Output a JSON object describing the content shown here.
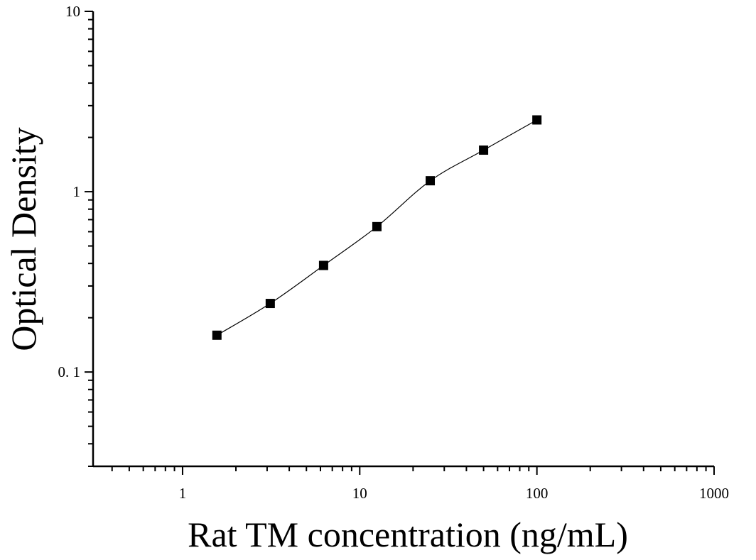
{
  "chart_data": {
    "type": "scatter",
    "xlabel": "Rat TM concentration (ng/mL)",
    "ylabel": "Optical Density",
    "x_scale": "log",
    "y_scale": "log",
    "xlim": [
      0.3125,
      1000
    ],
    "ylim": [
      0.03,
      10
    ],
    "x_tick_labels": [
      {
        "value": 1,
        "label": "1"
      },
      {
        "value": 10,
        "label": "10"
      },
      {
        "value": 100,
        "label": "100"
      },
      {
        "value": 1000,
        "label": "1000"
      }
    ],
    "y_tick_labels": [
      {
        "value": 0.1,
        "label": "0. 1"
      },
      {
        "value": 1,
        "label": "1"
      },
      {
        "value": 10,
        "label": "10"
      }
    ],
    "grid": false,
    "fitted_curve": true,
    "marker": "filled-square",
    "series": [
      {
        "x": [
          1.5625,
          3.125,
          6.25,
          12.5,
          25,
          50,
          100
        ],
        "y": [
          0.16,
          0.24,
          0.39,
          0.64,
          1.15,
          1.7,
          2.5
        ]
      }
    ],
    "colors": {
      "axis": "#000000",
      "marker": "#000000",
      "curve": "#000000"
    }
  }
}
